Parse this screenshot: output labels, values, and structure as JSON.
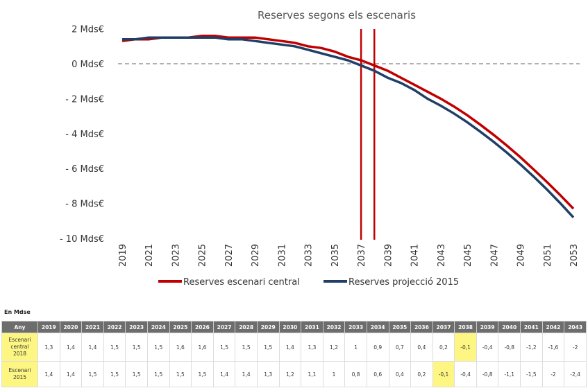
{
  "chart_data": {
    "type": "line",
    "title": "Reserves segons els escenaris",
    "x": [
      2019,
      2020,
      2021,
      2022,
      2023,
      2024,
      2025,
      2026,
      2027,
      2028,
      2029,
      2030,
      2031,
      2032,
      2033,
      2034,
      2035,
      2036,
      2037,
      2038,
      2039,
      2040,
      2041,
      2042,
      2043,
      2044,
      2045,
      2046,
      2047,
      2048,
      2049,
      2050,
      2051,
      2052,
      2053
    ],
    "xticks": [
      "2019",
      "2021",
      "2023",
      "2025",
      "2027",
      "2029",
      "2031",
      "2033",
      "2035",
      "2037",
      "2039",
      "2041",
      "2043",
      "2045",
      "2047",
      "2049",
      "2051",
      "2053"
    ],
    "yticks": [
      {
        "v": 2,
        "label": "2 Mds€"
      },
      {
        "v": 0,
        "label": "0 Mds€"
      },
      {
        "v": -2,
        "label": "- 2 Mds€"
      },
      {
        "v": -4,
        "label": "- 4 Mds€"
      },
      {
        "v": -6,
        "label": "- 6 Mds€"
      },
      {
        "v": -8,
        "label": "- 8 Mds€"
      },
      {
        "v": -10,
        "label": "- 10 Mds€"
      }
    ],
    "ylim": [
      -10,
      2
    ],
    "xlim": [
      2019,
      2053
    ],
    "grid": false,
    "zero_line": "dashed",
    "vertical_markers": [
      2037,
      2038
    ],
    "marker_color": "#c00000",
    "legend_placement": "bottom",
    "series": [
      {
        "name": "Reserves escenari central",
        "color": "#c00000",
        "values": [
          1.3,
          1.4,
          1.4,
          1.5,
          1.5,
          1.5,
          1.6,
          1.6,
          1.5,
          1.5,
          1.5,
          1.4,
          1.3,
          1.2,
          1,
          0.9,
          0.7,
          0.4,
          0.2,
          -0.1,
          -0.4,
          -0.8,
          -1.2,
          -1.6,
          -2,
          -2.45,
          -2.95,
          -3.5,
          -4.08,
          -4.7,
          -5.35,
          -6.05,
          -6.77,
          -7.52,
          -8.3
        ]
      },
      {
        "name": "Reserves projecció 2015",
        "color": "#1f3f66",
        "values": [
          1.4,
          1.4,
          1.5,
          1.5,
          1.5,
          1.5,
          1.5,
          1.5,
          1.4,
          1.4,
          1.3,
          1.2,
          1.1,
          1,
          0.8,
          0.6,
          0.4,
          0.2,
          -0.1,
          -0.4,
          -0.8,
          -1.1,
          -1.5,
          -2,
          -2.4,
          -2.85,
          -3.35,
          -3.9,
          -4.48,
          -5.1,
          -5.76,
          -6.46,
          -7.2,
          -7.98,
          -8.8
        ]
      }
    ]
  },
  "table": {
    "unit": "En Mdse",
    "header_label": "Any",
    "years": [
      "2019",
      "2020",
      "2021",
      "2022",
      "2023",
      "2024",
      "2025",
      "2026",
      "2027",
      "2028",
      "2029",
      "2030",
      "2031",
      "2032",
      "2033",
      "2034",
      "2035",
      "2036",
      "2037",
      "2038",
      "2039",
      "2040",
      "2041",
      "2042",
      "2043"
    ],
    "highlight_color": "#fdf683",
    "rows": [
      {
        "label_lines": [
          "Escenari",
          "central",
          "2018"
        ],
        "highlight_year": "2038",
        "values": [
          "1,3",
          "1,4",
          "1,4",
          "1,5",
          "1,5",
          "1,5",
          "1,6",
          "1,6",
          "1,5",
          "1,5",
          "1,5",
          "1,4",
          "1,3",
          "1,2",
          "1",
          "0,9",
          "0,7",
          "0,4",
          "0,2",
          "-0,1",
          "-0,4",
          "-0,8",
          "-1,2",
          "-1,6",
          "-2"
        ]
      },
      {
        "label_lines": [
          "Escenari",
          "2015"
        ],
        "highlight_year": "2037",
        "values": [
          "1,4",
          "1,4",
          "1,5",
          "1,5",
          "1,5",
          "1,5",
          "1,5",
          "1,5",
          "1,4",
          "1,4",
          "1,3",
          "1,2",
          "1,1",
          "1",
          "0,8",
          "0,6",
          "0,4",
          "0,2",
          "-0,1",
          "-0,4",
          "-0,8",
          "-1,1",
          "-1,5",
          "-2",
          "-2,4"
        ]
      }
    ]
  }
}
